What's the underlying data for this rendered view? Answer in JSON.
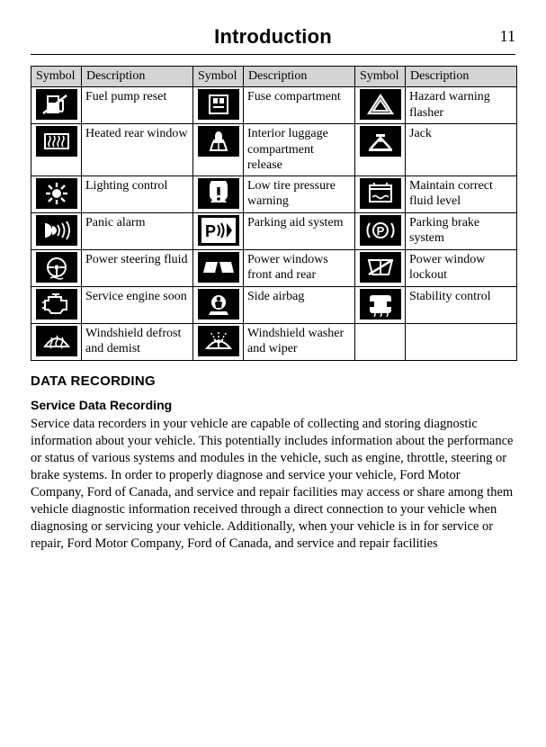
{
  "header": {
    "title": "Introduction",
    "page_number": "11"
  },
  "table": {
    "columns": [
      "Symbol",
      "Description",
      "Symbol",
      "Description",
      "Symbol",
      "Description"
    ],
    "rows": [
      [
        {
          "icon": "fuel-pump-reset",
          "desc": "Fuel pump reset"
        },
        {
          "icon": "fuse-compartment",
          "desc": "Fuse compartment"
        },
        {
          "icon": "hazard",
          "desc": "Hazard warning flasher"
        }
      ],
      [
        {
          "icon": "heated-rear-window",
          "desc": "Heated rear window"
        },
        {
          "icon": "interior-luggage",
          "desc": "Interior luggage compartment release"
        },
        {
          "icon": "jack",
          "desc": "Jack"
        }
      ],
      [
        {
          "icon": "lighting-control",
          "desc": "Lighting control"
        },
        {
          "icon": "low-tire",
          "desc": "Low tire pressure warning"
        },
        {
          "icon": "fluid-level",
          "desc": "Maintain correct fluid level"
        }
      ],
      [
        {
          "icon": "panic-alarm",
          "desc": "Panic alarm"
        },
        {
          "icon": "parking-aid",
          "desc": "Parking aid system"
        },
        {
          "icon": "parking-brake",
          "desc": "Parking brake system"
        }
      ],
      [
        {
          "icon": "power-steering-fluid",
          "desc": "Power steering fluid"
        },
        {
          "icon": "power-windows",
          "desc": "Power windows front and rear"
        },
        {
          "icon": "window-lockout",
          "desc": "Power window lockout"
        }
      ],
      [
        {
          "icon": "service-engine",
          "desc": "Service engine soon"
        },
        {
          "icon": "side-airbag",
          "desc": "Side airbag"
        },
        {
          "icon": "stability",
          "desc": "Stability control"
        }
      ],
      [
        {
          "icon": "defrost",
          "desc": "Windshield defrost and demist"
        },
        {
          "icon": "washer",
          "desc": "Windshield washer and wiper"
        },
        {
          "icon": "",
          "desc": ""
        }
      ]
    ]
  },
  "sections": {
    "h1": "DATA RECORDING",
    "h2": "Service Data Recording",
    "body": "Service data recorders in your vehicle are capable of collecting and storing diagnostic information about your vehicle. This potentially includes information about the performance or status of various systems and modules in the vehicle, such as engine, throttle, steering or brake systems. In order to properly diagnose and service your vehicle, Ford Motor Company, Ford of Canada, and service and repair facilities may access or share among them vehicle diagnostic information received through a direct connection to your vehicle when diagnosing or servicing your vehicle. Additionally, when your vehicle is in for service or repair, Ford Motor Company, Ford of Canada, and service and repair facilities"
  },
  "style": {
    "icon_bg": "#000000",
    "icon_fg": "#ffffff",
    "header_bg": "#d4d4d4",
    "border_color": "#000000",
    "body_font": "Century Schoolbook",
    "heading_font": "Arial"
  }
}
